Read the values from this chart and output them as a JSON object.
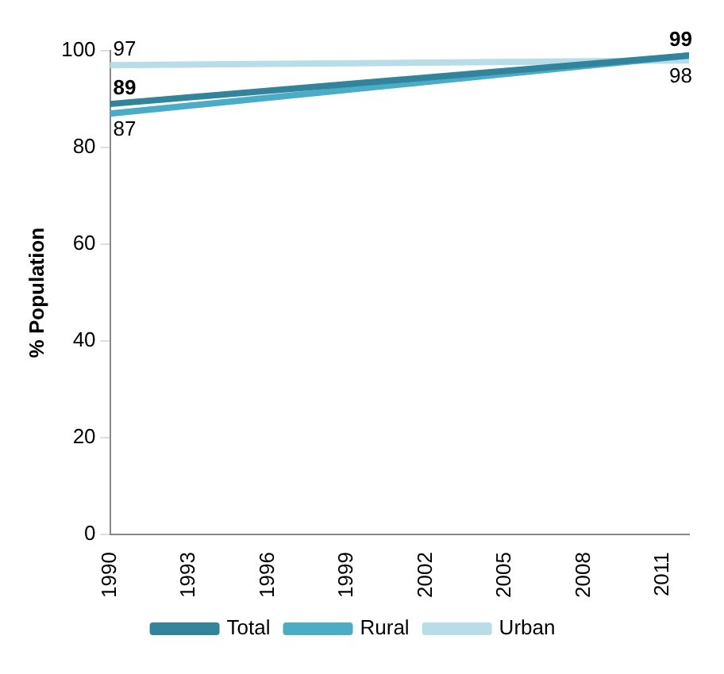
{
  "chart_data": {
    "type": "line",
    "ylabel": "% Population",
    "x": [
      1990,
      2012
    ],
    "xlim": [
      1990,
      2012
    ],
    "xticks": [
      1990,
      1993,
      1996,
      1999,
      2002,
      2005,
      2008,
      2011
    ],
    "ylim": [
      0,
      100
    ],
    "yticks": [
      0,
      20,
      40,
      60,
      80,
      100
    ],
    "grid": false,
    "legend": "bottom",
    "marker": "none",
    "series": [
      {
        "name": "Total",
        "color": "#31849b",
        "values": [
          89,
          99
        ],
        "value_labels": [
          "89",
          "99"
        ]
      },
      {
        "name": "Rural",
        "color": "#4bacc6",
        "values": [
          87,
          99
        ],
        "value_labels": [
          "87",
          null
        ]
      },
      {
        "name": "Urban",
        "color": "#b7dee8",
        "values": [
          97,
          98
        ],
        "value_labels": [
          "97",
          "98"
        ]
      }
    ]
  }
}
